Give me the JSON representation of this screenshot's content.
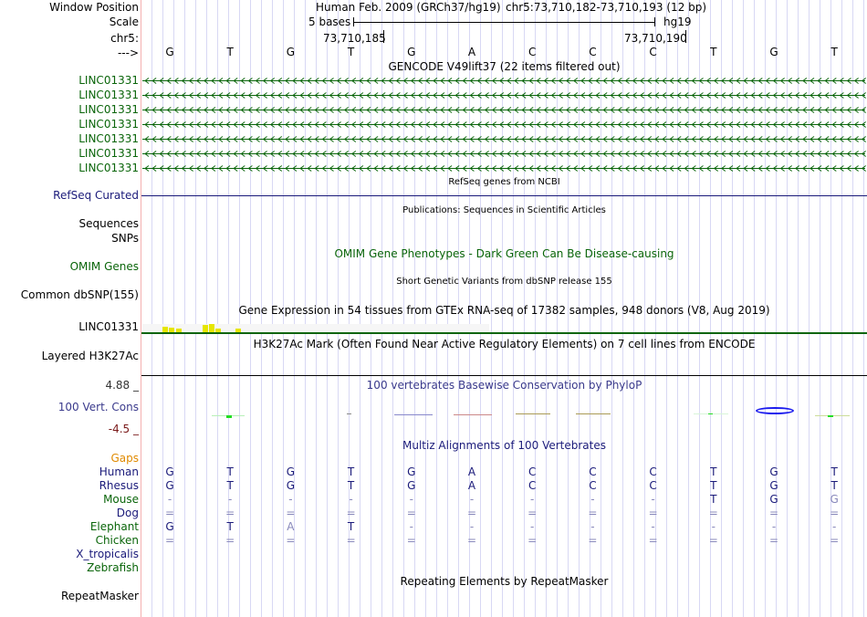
{
  "labels": {
    "window_position": "Window Position",
    "scale": "Scale",
    "chr": "chr5:",
    "strand": "--->",
    "gencode_gene": "LINC01331",
    "refseq": "RefSeq Curated",
    "sequences": "Sequences",
    "snps": "SNPs",
    "omim": "OMIM Genes",
    "dbsnp": "Common dbSNP(155)",
    "gtex": "LINC01331",
    "h3k27ac": "Layered H3K27Ac",
    "cons_max": "4.88 _",
    "cons": "100 Vert. Cons",
    "cons_min": "-4.5 _",
    "gaps": "Gaps",
    "repeatmasker": "RepeatMasker"
  },
  "header": {
    "assembly": "Human Feb. 2009 (GRCh37/hg19)",
    "position": "chr5:73,710,182-73,710,193 (12 bp)",
    "scale_text": "5 bases",
    "scale_db": "hg19",
    "coord_left": "73,710,185",
    "coord_right": "73,710,190"
  },
  "bases": [
    "G",
    "T",
    "G",
    "T",
    "G",
    "A",
    "C",
    "C",
    "C",
    "T",
    "G",
    "T"
  ],
  "titles": {
    "gencode": "GENCODE V49lift37 (22 items filtered out)",
    "refseq": "RefSeq genes from NCBI",
    "pubs": "Publications: Sequences in Scientific Articles",
    "omim": "OMIM Gene Phenotypes - Dark Green Can Be Disease-causing",
    "snp": "Short Genetic Variants from dbSNP release 155",
    "gtex": "Gene Expression in 54 tissues from GTEx RNA-seq of 17382 samples, 948 donors (V8, Aug 2019)",
    "h3k27ac": "H3K27Ac Mark (Often Found Near Active Regulatory Elements) on 7 cell lines from ENCODE",
    "phylop": "100 vertebrates Basewise Conservation by PhyloP",
    "multiz": "Multiz Alignments of 100 Vertebrates",
    "rmsk": "Repeating Elements by RepeatMasker"
  },
  "gencode_rows": 7,
  "colors": {
    "gene": "#0a650a",
    "refseq": "#1a1a7a",
    "gtex_bar": "#e6e600"
  },
  "gtex_values": [
    0,
    0,
    0,
    0.35,
    0.3,
    0.2,
    0,
    0,
    0,
    0.45,
    0.5,
    0.2,
    0,
    0,
    0.2
  ],
  "species": [
    {
      "name": "Human",
      "color": "navy",
      "seq": [
        "G",
        "T",
        "G",
        "T",
        "G",
        "A",
        "C",
        "C",
        "C",
        "T",
        "G",
        "T"
      ]
    },
    {
      "name": "Rhesus",
      "color": "navy",
      "seq": [
        "G",
        "T",
        "G",
        "T",
        "G",
        "A",
        "C",
        "C",
        "C",
        "T",
        "G",
        "T"
      ]
    },
    {
      "name": "Mouse",
      "color": "green",
      "seq": [
        "-",
        "-",
        "-",
        "-",
        "-",
        "-",
        "-",
        "-",
        "-",
        "T",
        "G",
        "G*"
      ]
    },
    {
      "name": "Dog",
      "color": "navy",
      "seq": [
        "=",
        "=",
        "=",
        "=",
        "=",
        "=",
        "=",
        "=",
        "=",
        "=",
        "=",
        "="
      ]
    },
    {
      "name": "Elephant",
      "color": "green",
      "seq": [
        "G",
        "T",
        "A*",
        "T",
        "-",
        "-",
        "-",
        "-",
        "-",
        "-",
        "-",
        "-"
      ]
    },
    {
      "name": "Chicken",
      "color": "green",
      "seq": [
        "=",
        "=",
        "=",
        "=",
        "=",
        "=",
        "=",
        "=",
        "=",
        "=",
        "=",
        "="
      ]
    },
    {
      "name": "X_tropicalis",
      "color": "navy",
      "seq": []
    },
    {
      "name": "Zebrafish",
      "color": "green",
      "seq": []
    }
  ]
}
